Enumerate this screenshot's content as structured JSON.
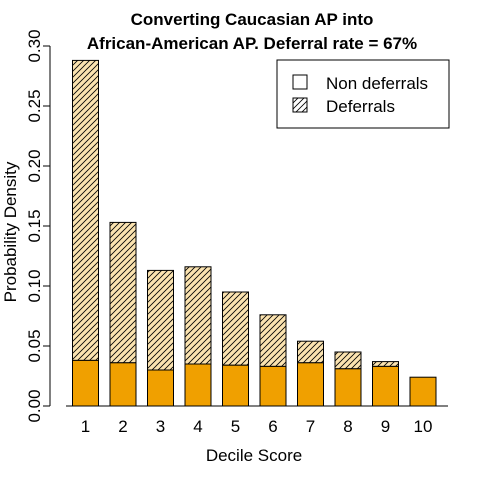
{
  "chart_data": {
    "type": "bar",
    "title": [
      "Converting Caucasian AP into",
      "African-American AP. Deferral rate = 67%"
    ],
    "xlabel": "Decile Score",
    "ylabel": "Probability Density",
    "categories": [
      "1",
      "2",
      "3",
      "4",
      "5",
      "6",
      "7",
      "8",
      "9",
      "10"
    ],
    "stacked": true,
    "series": [
      {
        "name": "Non deferrals",
        "fill": "#f0a000",
        "pattern": "solid",
        "values": [
          0.038,
          0.036,
          0.03,
          0.035,
          0.034,
          0.033,
          0.036,
          0.031,
          0.033,
          0.024
        ]
      },
      {
        "name": "Deferrals",
        "fill": "#fbe3b0",
        "pattern": "diagonal-hatch",
        "values": [
          0.25,
          0.117,
          0.083,
          0.081,
          0.061,
          0.043,
          0.018,
          0.014,
          0.004,
          0.0
        ]
      }
    ],
    "ylim": [
      0,
      0.3
    ],
    "yticks": [
      "0.00",
      "0.05",
      "0.10",
      "0.15",
      "0.20",
      "0.25",
      "0.30"
    ],
    "ytick_values": [
      0,
      0.05,
      0.1,
      0.15,
      0.2,
      0.25,
      0.3
    ],
    "legend": {
      "placement": "top-right",
      "entries": [
        {
          "label": "Non deferrals",
          "swatch": "empty"
        },
        {
          "label": "Deferrals",
          "swatch": "hatch"
        }
      ]
    },
    "grid": false
  }
}
